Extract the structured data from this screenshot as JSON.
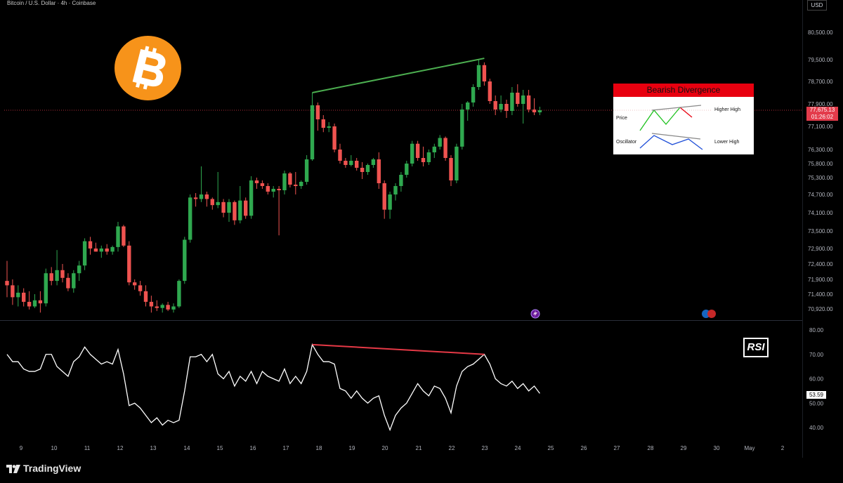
{
  "header": {
    "symbol_title": "Bitcoin / U.S. Dollar · 4h · Coinbase",
    "currency_label": "USD"
  },
  "branding": {
    "logo_text": "TradingView",
    "logo_icon": "tradingview-logo-icon",
    "bitcoin_icon": "bitcoin-icon"
  },
  "legend_box": {
    "title": "Bearish Divergence",
    "price_label": "Price",
    "oscillator_label": "Oscillator",
    "higher_high_label": "Higher High",
    "lower_high_label": "Lower High"
  },
  "badges": {
    "rsi_label": "RSI",
    "current_price": "77,675.13",
    "countdown": "01:26:02",
    "current_rsi": "53.59"
  },
  "colors": {
    "background": "#000000",
    "up_candle": "#26a69a",
    "up_candle_bright": "#2fa84f",
    "down_candle": "#ef5350",
    "trendline_price": "#4caf50",
    "trendline_rsi": "#e53946",
    "rsi_line": "#ffffff",
    "price_line": "#e33b4b",
    "bitcoin_orange": "#f7931a"
  },
  "chart_data": [
    {
      "type": "candlestick",
      "title": "Bitcoin / U.S. Dollar · 4h · Coinbase",
      "x_ticks": [
        "9",
        "10",
        "11",
        "12",
        "13",
        "14",
        "15",
        "16",
        "17",
        "18",
        "19",
        "20",
        "21",
        "22",
        "23",
        "24",
        "25",
        "26",
        "27",
        "28",
        "29",
        "30",
        "May",
        "2"
      ],
      "y_ticks": [
        80500,
        79500,
        78700,
        77900,
        77100,
        76300,
        75800,
        75300,
        74700,
        74100,
        73500,
        72900,
        72400,
        71900,
        71400,
        70920
      ],
      "y_tick_labels": [
        "80,500.00",
        "79,500.00",
        "78,700.00",
        "77,900.00",
        "77,100.00",
        "76,300.00",
        "75,800.00",
        "75,300.00",
        "74,700.00",
        "74,100.00",
        "73,500.00",
        "72,900.00",
        "72,400.00",
        "71,900.00",
        "71,400.00",
        "70,920.00"
      ],
      "ylim": [
        70700,
        81050
      ],
      "current_price": 77675.13,
      "candles": [
        {
          "o": 71850,
          "h": 72500,
          "l": 71300,
          "c": 71700
        },
        {
          "o": 71700,
          "h": 71900,
          "l": 71050,
          "c": 71300
        },
        {
          "o": 71300,
          "h": 71700,
          "l": 71000,
          "c": 71450
        },
        {
          "o": 71450,
          "h": 71600,
          "l": 71000,
          "c": 71150
        },
        {
          "o": 71150,
          "h": 71500,
          "l": 70900,
          "c": 71000
        },
        {
          "o": 71000,
          "h": 71400,
          "l": 70950,
          "c": 71200
        },
        {
          "o": 71200,
          "h": 71500,
          "l": 70800,
          "c": 71100
        },
        {
          "o": 71100,
          "h": 72250,
          "l": 71000,
          "c": 72100
        },
        {
          "o": 72100,
          "h": 72300,
          "l": 71700,
          "c": 71850
        },
        {
          "o": 71850,
          "h": 72850,
          "l": 71700,
          "c": 72200
        },
        {
          "o": 72200,
          "h": 72400,
          "l": 71800,
          "c": 71950
        },
        {
          "o": 71950,
          "h": 72100,
          "l": 71500,
          "c": 71600
        },
        {
          "o": 71600,
          "h": 72200,
          "l": 71450,
          "c": 72100
        },
        {
          "o": 72100,
          "h": 72500,
          "l": 71850,
          "c": 72350
        },
        {
          "o": 72350,
          "h": 73250,
          "l": 72200,
          "c": 73150
        },
        {
          "o": 73150,
          "h": 73300,
          "l": 72700,
          "c": 72900
        },
        {
          "o": 72900,
          "h": 73100,
          "l": 72800,
          "c": 72800
        },
        {
          "o": 72800,
          "h": 73000,
          "l": 72600,
          "c": 72900
        },
        {
          "o": 72900,
          "h": 73050,
          "l": 72700,
          "c": 72800
        },
        {
          "o": 72800,
          "h": 73000,
          "l": 72700,
          "c": 72950
        },
        {
          "o": 72950,
          "h": 73800,
          "l": 72800,
          "c": 73650
        },
        {
          "o": 73650,
          "h": 73700,
          "l": 72950,
          "c": 73000
        },
        {
          "o": 73000,
          "h": 73150,
          "l": 71700,
          "c": 71800
        },
        {
          "o": 71800,
          "h": 71900,
          "l": 71550,
          "c": 71700
        },
        {
          "o": 71700,
          "h": 71850,
          "l": 71350,
          "c": 71500
        },
        {
          "o": 71500,
          "h": 71700,
          "l": 71000,
          "c": 71150
        },
        {
          "o": 71150,
          "h": 71350,
          "l": 70800,
          "c": 71000
        },
        {
          "o": 71000,
          "h": 71200,
          "l": 70850,
          "c": 70950
        },
        {
          "o": 70950,
          "h": 71100,
          "l": 70800,
          "c": 71050
        },
        {
          "o": 71050,
          "h": 71150,
          "l": 70850,
          "c": 70900
        },
        {
          "o": 70900,
          "h": 71100,
          "l": 70800,
          "c": 71000
        },
        {
          "o": 71000,
          "h": 71900,
          "l": 70950,
          "c": 71850
        },
        {
          "o": 71850,
          "h": 73300,
          "l": 71750,
          "c": 73200
        },
        {
          "o": 73200,
          "h": 74700,
          "l": 73100,
          "c": 74600
        },
        {
          "o": 74600,
          "h": 74750,
          "l": 74300,
          "c": 74550
        },
        {
          "o": 74550,
          "h": 75700,
          "l": 74450,
          "c": 74700
        },
        {
          "o": 74700,
          "h": 74800,
          "l": 74300,
          "c": 74550
        },
        {
          "o": 74550,
          "h": 74600,
          "l": 74200,
          "c": 74350
        },
        {
          "o": 74350,
          "h": 75500,
          "l": 74250,
          "c": 74450
        },
        {
          "o": 74450,
          "h": 74550,
          "l": 73950,
          "c": 74100
        },
        {
          "o": 74100,
          "h": 74550,
          "l": 73800,
          "c": 74450
        },
        {
          "o": 74450,
          "h": 74500,
          "l": 73700,
          "c": 73850
        },
        {
          "o": 73850,
          "h": 75000,
          "l": 73750,
          "c": 74500
        },
        {
          "o": 74500,
          "h": 74600,
          "l": 73900,
          "c": 74000
        },
        {
          "o": 74000,
          "h": 75350,
          "l": 73900,
          "c": 75200
        },
        {
          "o": 75200,
          "h": 75300,
          "l": 74900,
          "c": 75100
        },
        {
          "o": 75100,
          "h": 75200,
          "l": 74900,
          "c": 75000
        },
        {
          "o": 75000,
          "h": 75100,
          "l": 74700,
          "c": 74800
        },
        {
          "o": 74800,
          "h": 75000,
          "l": 74600,
          "c": 74900
        },
        {
          "o": 74900,
          "h": 75000,
          "l": 73350,
          "c": 74850
        },
        {
          "o": 74850,
          "h": 75550,
          "l": 74700,
          "c": 75450
        },
        {
          "o": 75450,
          "h": 75500,
          "l": 74950,
          "c": 75050
        },
        {
          "o": 75050,
          "h": 75500,
          "l": 74700,
          "c": 75000
        },
        {
          "o": 75000,
          "h": 75200,
          "l": 74900,
          "c": 75150
        },
        {
          "o": 75150,
          "h": 76100,
          "l": 75050,
          "c": 75950
        },
        {
          "o": 75950,
          "h": 78300,
          "l": 75900,
          "c": 77850
        },
        {
          "o": 77850,
          "h": 77950,
          "l": 76950,
          "c": 77350
        },
        {
          "o": 77350,
          "h": 77500,
          "l": 76900,
          "c": 77050
        },
        {
          "o": 77050,
          "h": 77250,
          "l": 76900,
          "c": 77100
        },
        {
          "o": 77100,
          "h": 77200,
          "l": 76200,
          "c": 76300
        },
        {
          "o": 76300,
          "h": 76500,
          "l": 75800,
          "c": 75900
        },
        {
          "o": 75900,
          "h": 76000,
          "l": 75650,
          "c": 75750
        },
        {
          "o": 75750,
          "h": 76100,
          "l": 75700,
          "c": 75900
        },
        {
          "o": 75900,
          "h": 76000,
          "l": 75550,
          "c": 75650
        },
        {
          "o": 75650,
          "h": 75850,
          "l": 75250,
          "c": 75500
        },
        {
          "o": 75500,
          "h": 75800,
          "l": 75400,
          "c": 75750
        },
        {
          "o": 75750,
          "h": 76000,
          "l": 75650,
          "c": 75950
        },
        {
          "o": 75950,
          "h": 76200,
          "l": 74900,
          "c": 75100
        },
        {
          "o": 75100,
          "h": 75200,
          "l": 73900,
          "c": 74200
        },
        {
          "o": 74200,
          "h": 74800,
          "l": 73900,
          "c": 74700
        },
        {
          "o": 74700,
          "h": 75100,
          "l": 74500,
          "c": 75000
        },
        {
          "o": 75000,
          "h": 75500,
          "l": 74800,
          "c": 75400
        },
        {
          "o": 75400,
          "h": 75900,
          "l": 75300,
          "c": 75800
        },
        {
          "o": 75800,
          "h": 76600,
          "l": 75700,
          "c": 76500
        },
        {
          "o": 76500,
          "h": 76600,
          "l": 75900,
          "c": 76000
        },
        {
          "o": 76000,
          "h": 76400,
          "l": 75700,
          "c": 75850
        },
        {
          "o": 75850,
          "h": 76300,
          "l": 75750,
          "c": 76200
        },
        {
          "o": 76200,
          "h": 76500,
          "l": 76000,
          "c": 76400
        },
        {
          "o": 76400,
          "h": 76800,
          "l": 76300,
          "c": 76700
        },
        {
          "o": 76700,
          "h": 76750,
          "l": 75900,
          "c": 76000
        },
        {
          "o": 76000,
          "h": 76100,
          "l": 75000,
          "c": 75200
        },
        {
          "o": 75200,
          "h": 76500,
          "l": 75100,
          "c": 76400
        },
        {
          "o": 76400,
          "h": 77900,
          "l": 76300,
          "c": 77700
        },
        {
          "o": 77700,
          "h": 78000,
          "l": 77300,
          "c": 77950
        },
        {
          "o": 77950,
          "h": 78600,
          "l": 77800,
          "c": 78500
        },
        {
          "o": 78500,
          "h": 79500,
          "l": 78400,
          "c": 79300
        },
        {
          "o": 79300,
          "h": 79400,
          "l": 78550,
          "c": 78700
        },
        {
          "o": 78700,
          "h": 78800,
          "l": 77900,
          "c": 78000
        },
        {
          "o": 78000,
          "h": 78200,
          "l": 77500,
          "c": 77700
        },
        {
          "o": 77700,
          "h": 78200,
          "l": 77600,
          "c": 77900
        },
        {
          "o": 77900,
          "h": 78050,
          "l": 77400,
          "c": 77650
        },
        {
          "o": 77650,
          "h": 78500,
          "l": 77500,
          "c": 78300
        },
        {
          "o": 78300,
          "h": 78600,
          "l": 77800,
          "c": 77900
        },
        {
          "o": 77900,
          "h": 78400,
          "l": 77200,
          "c": 78200
        },
        {
          "o": 78200,
          "h": 78400,
          "l": 77600,
          "c": 77700
        },
        {
          "o": 77700,
          "h": 78100,
          "l": 77500,
          "c": 77600
        },
        {
          "o": 77600,
          "h": 77800,
          "l": 77500,
          "c": 77675
        }
      ],
      "annotations": [
        {
          "type": "trendline",
          "from": {
            "index": 55,
            "value": 78300
          },
          "to": {
            "index": 86,
            "value": 79550
          },
          "color": "#4caf50"
        }
      ]
    },
    {
      "type": "line",
      "title": "RSI",
      "y_ticks": [
        80,
        70,
        60,
        50,
        40
      ],
      "y_tick_labels": [
        "80.00",
        "70.00",
        "60.00",
        "50.00",
        "40.00"
      ],
      "ylim": [
        35,
        82
      ],
      "current_value": 53.59,
      "values": [
        70,
        67,
        67,
        64,
        63,
        63,
        64,
        70,
        70,
        65,
        63,
        61,
        67,
        69,
        73,
        70,
        68,
        66,
        67,
        66,
        72,
        62,
        49,
        50,
        48,
        45,
        42,
        44,
        41,
        43,
        42,
        43,
        55,
        69,
        69,
        70,
        67,
        70,
        62,
        60,
        63,
        57,
        61,
        59,
        63,
        58,
        63,
        61,
        60,
        59,
        64,
        58,
        61,
        58,
        63,
        74,
        70,
        67,
        67,
        66,
        56,
        55,
        52,
        55,
        52,
        50,
        52,
        53,
        45,
        39,
        45,
        48,
        50,
        54,
        58,
        55,
        53,
        57,
        56,
        52,
        46,
        57,
        63,
        65,
        66,
        68,
        70,
        66,
        60,
        58,
        57,
        59,
        56,
        58,
        55,
        57,
        54
      ],
      "annotations": [
        {
          "type": "trendline",
          "from": {
            "index": 55,
            "value": 74
          },
          "to": {
            "index": 86,
            "value": 70
          },
          "color": "#e53946"
        }
      ]
    }
  ]
}
